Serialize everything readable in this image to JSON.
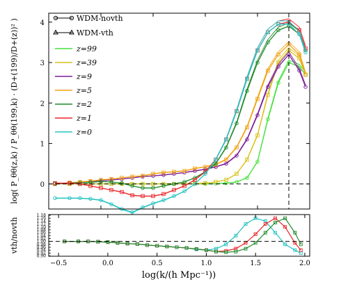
{
  "chart_data": [
    {
      "type": "line",
      "ylabel": "log( P_θθ(z,k) / P_θθ(199,k) · (D+(199)/D+(z))² )",
      "xlim": [
        -0.5,
        2.0
      ],
      "ylim": [
        -0.62,
        4.22
      ],
      "yticks": [
        "0",
        "1",
        "2",
        "3",
        "4"
      ],
      "grid": false,
      "legend": {
        "position": "top-left",
        "markers": [
          {
            "label": "WDM-novth",
            "marker": "circle"
          },
          {
            "label": "WDM-vth",
            "marker": "triangle"
          }
        ],
        "lines": [
          {
            "label": "z=99",
            "color": "#44e03a"
          },
          {
            "label": "z=39",
            "color": "#d8c21a"
          },
          {
            "label": "z=9",
            "color": "#7d1f9a"
          },
          {
            "label": "z=5",
            "color": "#f2a214"
          },
          {
            "label": "z=2",
            "color": "#1e8a2a"
          },
          {
            "label": "z=1",
            "color": "#e8252a"
          },
          {
            "label": "z=0",
            "color": "#25c2c2"
          }
        ]
      },
      "reference_lines": [
        {
          "axis": "y",
          "value": 0,
          "style": "dashed"
        },
        {
          "axis": "x",
          "value": 1.8,
          "style": "dashed"
        }
      ],
      "x": [
        -0.44,
        -0.3,
        -0.2,
        -0.1,
        0.0,
        0.1,
        0.2,
        0.3,
        0.4,
        0.5,
        0.6,
        0.7,
        0.8,
        0.9,
        1.0,
        1.1,
        1.2,
        1.3,
        1.4,
        1.5,
        1.6,
        1.7,
        1.8,
        1.9,
        1.96
      ],
      "series": [
        {
          "name": "z=99",
          "color": "#44e03a",
          "y": [
            0.0,
            0.0,
            0.0,
            0.0,
            0.0,
            0.0,
            0.0,
            0.0,
            0.0,
            0.0,
            0.0,
            0.0,
            0.0,
            0.0,
            0.0,
            0.01,
            0.02,
            0.05,
            0.15,
            0.55,
            1.6,
            2.5,
            3.0,
            2.9,
            2.7
          ]
        },
        {
          "name": "z=39",
          "color": "#d8c21a",
          "y": [
            0.0,
            0.0,
            0.0,
            0.0,
            0.0,
            0.0,
            0.0,
            0.0,
            0.0,
            0.0,
            0.0,
            0.0,
            0.0,
            0.01,
            0.02,
            0.05,
            0.1,
            0.25,
            0.6,
            1.2,
            2.2,
            3.0,
            3.3,
            3.1,
            2.7
          ]
        },
        {
          "name": "z=9",
          "color": "#7d1f9a",
          "y": [
            0.0,
            0.02,
            0.03,
            0.05,
            0.08,
            0.1,
            0.12,
            0.15,
            0.18,
            0.2,
            0.22,
            0.25,
            0.28,
            0.32,
            0.36,
            0.42,
            0.5,
            0.7,
            1.1,
            1.7,
            2.4,
            2.9,
            3.2,
            2.8,
            2.4
          ]
        },
        {
          "name": "z=5",
          "color": "#f2a214",
          "y": [
            0.0,
            0.03,
            0.05,
            0.07,
            0.1,
            0.12,
            0.15,
            0.18,
            0.2,
            0.25,
            0.28,
            0.3,
            0.32,
            0.38,
            0.42,
            0.48,
            0.6,
            0.9,
            1.4,
            2.1,
            2.8,
            3.2,
            3.45,
            3.2,
            2.7
          ]
        },
        {
          "name": "z=2",
          "color": "#1e8a2a",
          "y": [
            0.0,
            0.02,
            0.03,
            0.04,
            0.06,
            0.05,
            0.02,
            -0.05,
            -0.1,
            -0.1,
            -0.05,
            0.0,
            0.05,
            0.15,
            0.3,
            0.5,
            0.9,
            1.5,
            2.3,
            3.0,
            3.5,
            3.8,
            3.9,
            3.7,
            3.3
          ]
        },
        {
          "name": "z=1",
          "color": "#e8252a",
          "y": [
            0.02,
            0.02,
            0.0,
            -0.05,
            -0.1,
            -0.15,
            -0.2,
            -0.28,
            -0.3,
            -0.3,
            -0.25,
            -0.15,
            -0.05,
            0.1,
            0.3,
            0.6,
            1.1,
            1.8,
            2.6,
            3.3,
            3.75,
            3.95,
            4.0,
            3.8,
            3.35
          ]
        },
        {
          "name": "z=0",
          "color": "#25c2c2",
          "y": [
            -0.35,
            -0.35,
            -0.35,
            -0.37,
            -0.4,
            -0.5,
            -0.62,
            -0.7,
            -0.58,
            -0.48,
            -0.4,
            -0.3,
            -0.18,
            0.0,
            0.25,
            0.6,
            1.1,
            1.8,
            2.6,
            3.3,
            3.75,
            3.95,
            3.95,
            3.7,
            3.25
          ]
        }
      ]
    },
    {
      "type": "line",
      "xlabel": "log(k/(h Mpc⁻¹))",
      "ylabel": "vth/novth",
      "xlim": [
        -0.6,
        2.05
      ],
      "ylim": [
        0.898,
        1.185
      ],
      "xticks": [
        "−0.5",
        "0.0",
        "0.5",
        "1.0",
        "1.5",
        "2.0"
      ],
      "yticks": [
        "0.90",
        "0.92",
        "0.94",
        "0.96",
        "0.98",
        "1.00",
        "1.02",
        "1.04",
        "1.06",
        "1.08",
        "1.10",
        "1.12",
        "1.14",
        "1.16",
        "1.18"
      ],
      "grid": false,
      "reference_lines": [
        {
          "axis": "y",
          "value": 1.0,
          "style": "dashed"
        }
      ],
      "x": [
        -0.44,
        -0.3,
        -0.2,
        -0.1,
        0.0,
        0.1,
        0.2,
        0.3,
        0.4,
        0.5,
        0.6,
        0.7,
        0.8,
        0.9,
        1.0,
        1.1,
        1.2,
        1.3,
        1.4,
        1.5,
        1.6,
        1.7,
        1.8,
        1.9,
        1.96
      ],
      "series": [
        {
          "name": "z=0",
          "color": "#25c2c2",
          "y": [
            1.0,
            1.0,
            1.0,
            0.998,
            0.995,
            0.99,
            0.985,
            0.982,
            0.975,
            0.97,
            0.965,
            0.96,
            0.955,
            0.945,
            0.94,
            0.95,
            0.98,
            1.04,
            1.12,
            1.16,
            1.14,
            1.06,
            0.98,
            0.94,
            0.92
          ]
        },
        {
          "name": "z=1",
          "color": "#e8252a",
          "y": [
            1.0,
            1.0,
            1.0,
            0.998,
            0.995,
            0.99,
            0.985,
            0.982,
            0.975,
            0.97,
            0.965,
            0.96,
            0.955,
            0.948,
            0.94,
            0.93,
            0.935,
            0.95,
            0.99,
            1.05,
            1.12,
            1.16,
            1.1,
            0.99,
            0.94
          ]
        },
        {
          "name": "z=2",
          "color": "#1e8a2a",
          "y": [
            1.0,
            1.0,
            1.0,
            0.998,
            0.995,
            0.99,
            0.985,
            0.982,
            0.975,
            0.97,
            0.965,
            0.96,
            0.955,
            0.948,
            0.94,
            0.93,
            0.925,
            0.93,
            0.95,
            0.99,
            1.06,
            1.13,
            1.16,
            1.06,
            0.98
          ]
        }
      ]
    }
  ]
}
